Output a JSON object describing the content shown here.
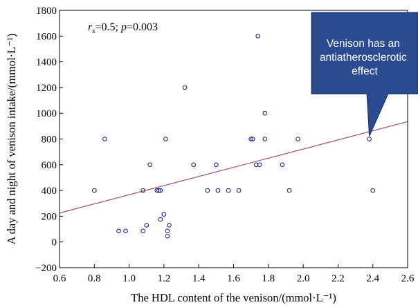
{
  "chart_data": {
    "type": "scatter",
    "xlabel": "The HDL content of the venison/(mmol·L⁻¹)",
    "ylabel": "A day and night of venison intake/(mmol·L⁻¹)",
    "xlim": [
      0.6,
      2.6
    ],
    "ylim": [
      -200,
      1800
    ],
    "x_ticks": [
      "0.6",
      "0.8",
      "1.0",
      "1.2",
      "1.4",
      "1.6",
      "1.8",
      "2.0",
      "2.2",
      "2.4",
      "2.6"
    ],
    "y_ticks": [
      "−200",
      "0",
      "200",
      "400",
      "600",
      "800",
      "1000",
      "1200",
      "1400",
      "1600",
      "1800"
    ],
    "grid": false,
    "marker_color": "#1f2a8c",
    "trend_color": "#a0505a",
    "points": [
      {
        "x": 0.8,
        "y": 400
      },
      {
        "x": 0.86,
        "y": 800
      },
      {
        "x": 0.94,
        "y": 85
      },
      {
        "x": 0.98,
        "y": 85
      },
      {
        "x": 1.08,
        "y": 400
      },
      {
        "x": 1.08,
        "y": 85
      },
      {
        "x": 1.1,
        "y": 130
      },
      {
        "x": 1.12,
        "y": 600
      },
      {
        "x": 1.16,
        "y": 400
      },
      {
        "x": 1.17,
        "y": 400
      },
      {
        "x": 1.18,
        "y": 400
      },
      {
        "x": 1.18,
        "y": 175
      },
      {
        "x": 1.2,
        "y": 215
      },
      {
        "x": 1.21,
        "y": 800
      },
      {
        "x": 1.22,
        "y": 85
      },
      {
        "x": 1.22,
        "y": 45
      },
      {
        "x": 1.23,
        "y": 130
      },
      {
        "x": 1.32,
        "y": 1200
      },
      {
        "x": 1.37,
        "y": 600
      },
      {
        "x": 1.45,
        "y": 400
      },
      {
        "x": 1.5,
        "y": 600
      },
      {
        "x": 1.51,
        "y": 400
      },
      {
        "x": 1.57,
        "y": 400
      },
      {
        "x": 1.63,
        "y": 400
      },
      {
        "x": 1.7,
        "y": 800
      },
      {
        "x": 1.71,
        "y": 800
      },
      {
        "x": 1.73,
        "y": 600
      },
      {
        "x": 1.74,
        "y": 1600
      },
      {
        "x": 1.75,
        "y": 600
      },
      {
        "x": 1.78,
        "y": 1000
      },
      {
        "x": 1.78,
        "y": 800
      },
      {
        "x": 1.88,
        "y": 600
      },
      {
        "x": 1.92,
        "y": 400
      },
      {
        "x": 1.97,
        "y": 800
      },
      {
        "x": 2.38,
        "y": 800
      },
      {
        "x": 2.4,
        "y": 400
      }
    ],
    "trendline": {
      "x": [
        0.6,
        2.6
      ],
      "y": [
        225,
        935
      ]
    },
    "stat_annotation": {
      "r_label": "r",
      "r_sub": "s",
      "text": "=0.5; ",
      "p_label": "p",
      "p_text": "=0.003"
    },
    "callout": {
      "lines": [
        "Venison has an",
        "antiatherosclerotic",
        "effect"
      ],
      "fill": "#2a4b8f",
      "pointer": {
        "x": 2.38,
        "y": 800
      }
    }
  }
}
